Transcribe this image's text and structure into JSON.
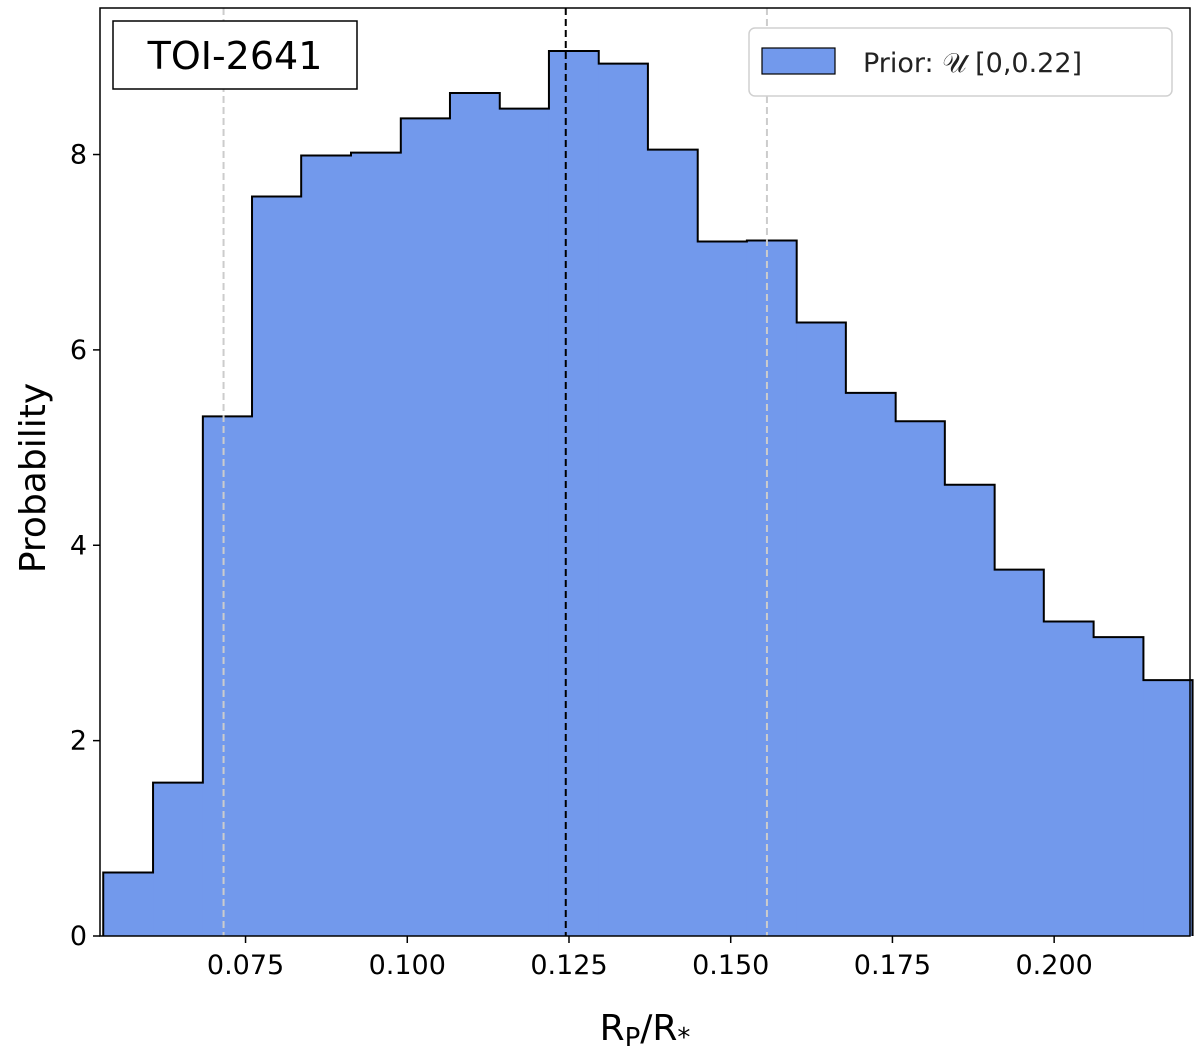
{
  "chart_data": {
    "type": "histogram",
    "annotation": "TOI-2641",
    "xlabel": "R",
    "xlabel_sub1": "P",
    "xlabel_mid": "/R",
    "xlabel_sub2": "*",
    "ylabel": "Probability",
    "xlim": [
      0.0525,
      0.221
    ],
    "ylim": [
      0,
      9.5
    ],
    "xticks": [
      0.075,
      0.1,
      0.125,
      0.15,
      0.175,
      0.2
    ],
    "xtick_labels": [
      "0.075",
      "0.100",
      "0.125",
      "0.150",
      "0.175",
      "0.200"
    ],
    "yticks": [
      0,
      2,
      4,
      6,
      8
    ],
    "ytick_labels": [
      "0",
      "2",
      "4",
      "6",
      "8"
    ],
    "fill_color": "#7299ec",
    "edge_color": "#000000",
    "bin_edges": [
      0.053,
      0.0607,
      0.0684,
      0.076,
      0.0836,
      0.0913,
      0.099,
      0.1066,
      0.1143,
      0.1219,
      0.1296,
      0.1372,
      0.1449,
      0.1525,
      0.1602,
      0.1678,
      0.1755,
      0.1831,
      0.1908,
      0.1984,
      0.2061,
      0.2138,
      0.2214
    ],
    "values": [
      0.65,
      1.57,
      5.32,
      7.57,
      7.99,
      8.02,
      8.37,
      8.63,
      8.47,
      9.06,
      8.93,
      8.05,
      7.11,
      7.12,
      6.28,
      5.56,
      5.27,
      4.62,
      3.75,
      3.22,
      3.06,
      2.62
    ],
    "vlines": [
      {
        "x": 0.0716,
        "color": "#cccccc",
        "style": "dashed"
      },
      {
        "x": 0.1245,
        "color": "#000000",
        "style": "dashed"
      },
      {
        "x": 0.1556,
        "color": "#cccccc",
        "style": "dashed"
      }
    ],
    "legend": {
      "label": "Prior: 𝒰 [0,0.22]",
      "position": "top-right"
    }
  }
}
